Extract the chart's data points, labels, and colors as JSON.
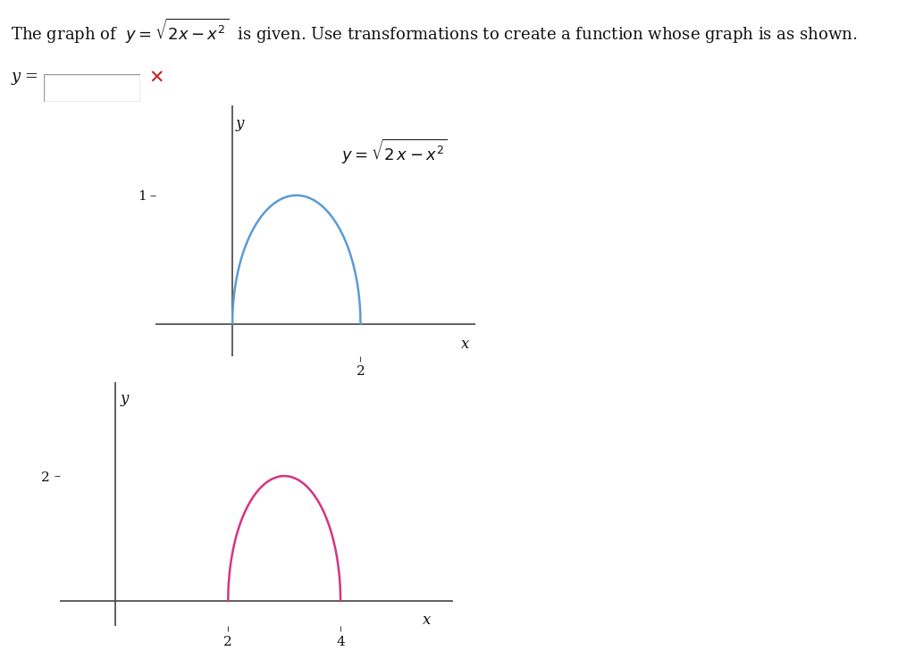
{
  "title_text": "The graph of  $y = \\sqrt{2x - x^2}$  is given. Use transformations to create a function whose graph is as shown.",
  "input_label": "y =",
  "top_graph": {
    "label": "$y = \\sqrt{2\\,x - x^2}$",
    "color": "#5b9bd5",
    "x_range": [
      0,
      2
    ],
    "x_tick": 2,
    "y_tick": 1,
    "xlim": [
      -1.2,
      3.8
    ],
    "ylim": [
      -0.25,
      1.7
    ],
    "axis_label_x": "x",
    "axis_label_y": "y"
  },
  "bottom_graph": {
    "color": "#d63384",
    "x_range": [
      2,
      4
    ],
    "x_ticks": [
      2,
      4
    ],
    "y_tick": 2,
    "xlim": [
      -1.0,
      6.0
    ],
    "ylim": [
      -0.4,
      3.5
    ],
    "axis_label_x": "x",
    "axis_label_y": "y"
  },
  "bg_color": "#ffffff",
  "text_color": "#111111",
  "axis_color": "#444444"
}
